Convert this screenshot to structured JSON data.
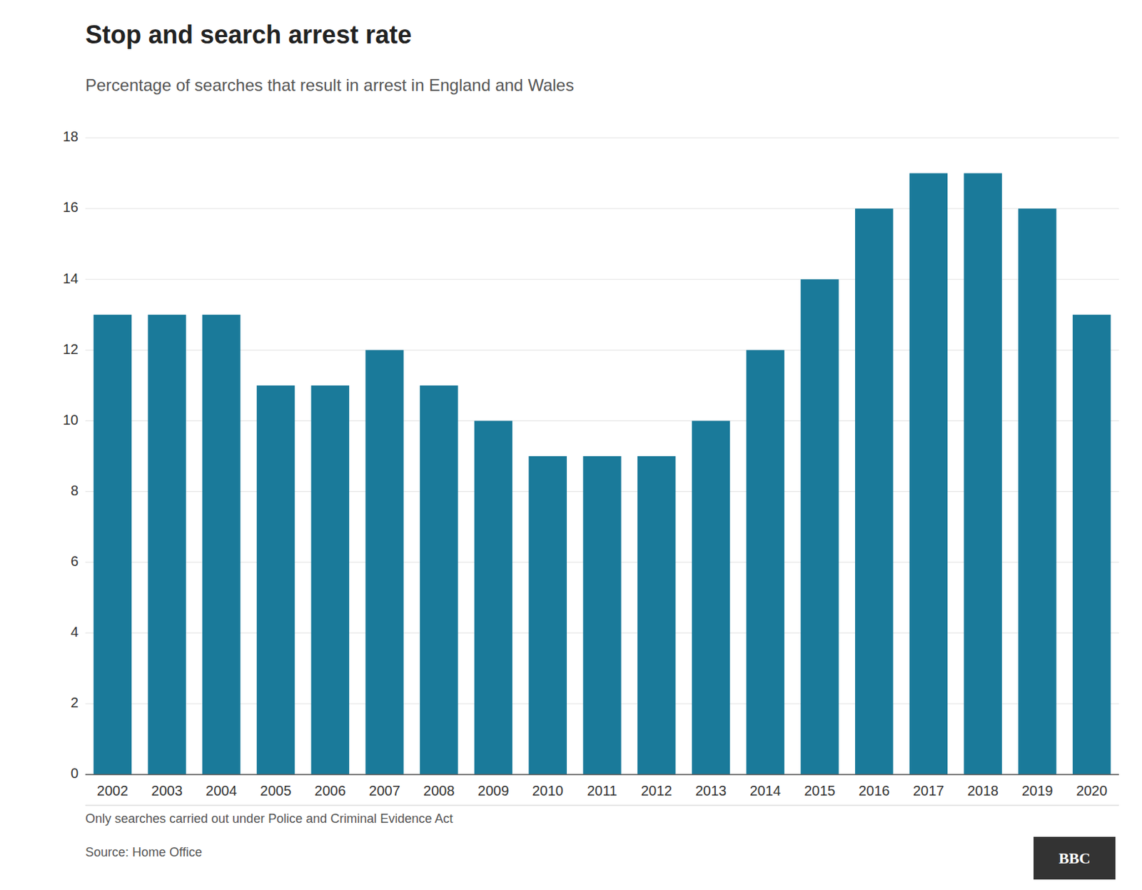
{
  "chart_data": {
    "type": "bar",
    "title": "Stop and search arrest rate",
    "subtitle": "Percentage of searches that result in arrest in England and Wales",
    "footnote": "Only searches carried out under Police and Criminal Evidence Act",
    "source": "Source: Home Office",
    "annotations": [
      "BBC"
    ],
    "categories": [
      "2002",
      "2003",
      "2004",
      "2005",
      "2006",
      "2007",
      "2008",
      "2009",
      "2010",
      "2011",
      "2012",
      "2013",
      "2014",
      "2015",
      "2016",
      "2017",
      "2018",
      "2019",
      "2020"
    ],
    "values": [
      13,
      13,
      13,
      11,
      11,
      12,
      11,
      10,
      9,
      9,
      9,
      10,
      12,
      14,
      16,
      17,
      17,
      16,
      13
    ],
    "color": "#1a7a9a",
    "ylim": [
      0,
      18
    ],
    "yticks": [
      0,
      2,
      4,
      6,
      8,
      10,
      12,
      14,
      16,
      18
    ],
    "grid": true
  }
}
